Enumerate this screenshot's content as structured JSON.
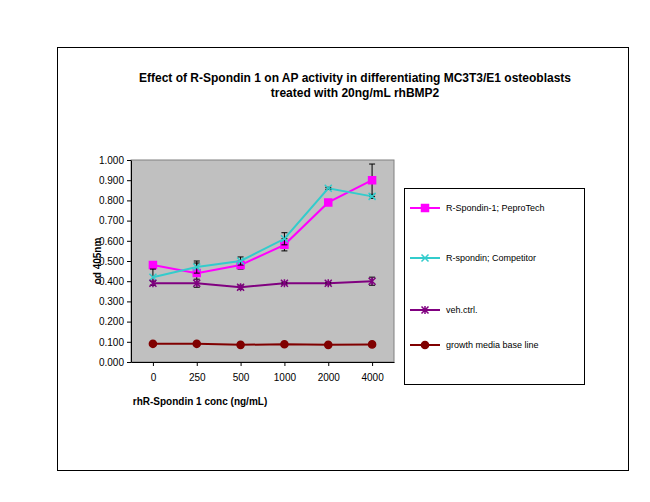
{
  "chart_data": {
    "type": "line",
    "title": "Effect of R-Spondin 1 on AP activity in differentiating MC3T3/E1 osteoblasts treated with 20ng/mL rhBMP2",
    "x_label": "rhR-Spondin 1 conc (ng/mL)",
    "y_label": "od 405nm",
    "categories": [
      "0",
      "250",
      "500",
      "1000",
      "2000",
      "4000"
    ],
    "ylim": [
      0,
      1
    ],
    "yticks": [
      {
        "value": 0,
        "label": "0.000"
      },
      {
        "value": 0.1,
        "label": "0.100"
      },
      {
        "value": 0.2,
        "label": "0.200"
      },
      {
        "value": 0.3,
        "label": "0.300"
      },
      {
        "value": 0.4,
        "label": "0.400"
      },
      {
        "value": 0.5,
        "label": "0.500"
      },
      {
        "value": 0.6,
        "label": "0.600"
      },
      {
        "value": 0.7,
        "label": "0.700"
      },
      {
        "value": 0.8,
        "label": "0.800"
      },
      {
        "value": 0.9,
        "label": "0.900"
      },
      {
        "value": 1,
        "label": "1.000"
      }
    ],
    "grid": false,
    "legend": "right",
    "series": [
      {
        "name": "R-Spondin-1; PeproTech",
        "color": "#ff00ff",
        "marker": "square",
        "values": [
          0.48,
          0.44,
          0.48,
          0.58,
          0.79,
          0.9
        ],
        "errors": [
          0.01,
          0.05,
          0.02,
          0.03,
          0.01,
          0.08
        ]
      },
      {
        "name": "R-spondin; Competitor",
        "color": "#33cccc",
        "marker": "x",
        "values": [
          0.42,
          0.47,
          0.5,
          0.61,
          0.86,
          0.82
        ],
        "errors": [
          0.04,
          0.03,
          0.02,
          0.03,
          0.005,
          0.01
        ]
      },
      {
        "name": "veh.ctrl.",
        "color": "#800080",
        "marker": "star",
        "values": [
          0.39,
          0.39,
          0.37,
          0.39,
          0.39,
          0.4
        ],
        "errors": [
          0.01,
          0.02,
          0.01,
          0.005,
          0.005,
          0.02
        ]
      },
      {
        "name": "growth media base line",
        "color": "#800000",
        "marker": "circle",
        "values": [
          0.09,
          0.09,
          0.085,
          0.088,
          0.085,
          0.087
        ],
        "errors": [
          0.003,
          0.003,
          0.003,
          0.003,
          0.003,
          0.003
        ]
      }
    ]
  }
}
